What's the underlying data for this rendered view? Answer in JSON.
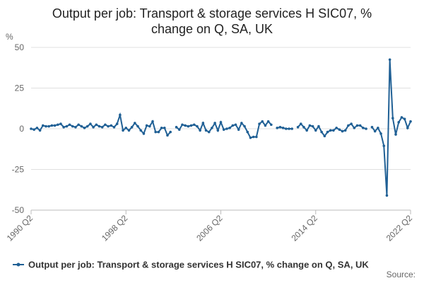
{
  "chart_data": {
    "type": "line",
    "title": "Output per job: Transport & storage services H SIC07, % change on Q, SA, UK",
    "y_label": "%",
    "source": "Source:",
    "categories": [
      "1990 Q2",
      null,
      null,
      null,
      null,
      null,
      null,
      null,
      null,
      null,
      null,
      null,
      null,
      null,
      null,
      null,
      null,
      null,
      null,
      null,
      null,
      null,
      null,
      null,
      null,
      null,
      null,
      null,
      null,
      null,
      null,
      null,
      "1998 Q2",
      null,
      null,
      null,
      null,
      null,
      null,
      null,
      null,
      null,
      null,
      null,
      null,
      null,
      null,
      null,
      null,
      null,
      null,
      null,
      null,
      null,
      null,
      null,
      null,
      null,
      null,
      null,
      null,
      null,
      null,
      null,
      "2006 Q2",
      null,
      null,
      null,
      null,
      null,
      null,
      null,
      null,
      null,
      null,
      null,
      null,
      null,
      null,
      null,
      null,
      null,
      null,
      null,
      null,
      null,
      null,
      null,
      null,
      null,
      null,
      null,
      null,
      null,
      null,
      null,
      "2014 Q2",
      null,
      null,
      null,
      null,
      null,
      null,
      null,
      null,
      null,
      null,
      null,
      null,
      null,
      null,
      null,
      null,
      null,
      null,
      null,
      null,
      null,
      null,
      null,
      null,
      null,
      null,
      null,
      null,
      null,
      null,
      null,
      "2022 Q2"
    ],
    "series": [
      {
        "name": "Output per job: Transport & storage services H SIC07, % change on Q, SA, UK",
        "color": "#206095",
        "values": [
          0,
          -0.5,
          0.5,
          -1,
          2,
          1.5,
          1.5,
          2,
          2,
          2.5,
          3,
          1,
          1.5,
          2.5,
          1.5,
          1,
          2.5,
          1.5,
          0.5,
          1.5,
          3,
          1,
          2.5,
          1.5,
          1,
          2.5,
          1.5,
          2,
          1,
          3,
          8.5,
          -1,
          0.5,
          -1,
          1,
          3.5,
          1.5,
          -1,
          -3,
          2,
          1.5,
          4.5,
          -2,
          -2,
          0.5,
          0.5,
          -4,
          -2,
          null,
          1,
          -0.5,
          2.5,
          2,
          1.5,
          2,
          2.5,
          1.5,
          -1,
          3.5,
          -1,
          -2,
          0.5,
          3.5,
          -1,
          4,
          -0.5,
          0,
          0.5,
          2,
          2.5,
          -0.5,
          3.5,
          1.5,
          -2,
          -5.5,
          -5,
          -5,
          3,
          4.5,
          2,
          4.5,
          2.5,
          null,
          0.5,
          1,
          0.5,
          0,
          0,
          0,
          null,
          1,
          3,
          1,
          -1,
          2,
          1.5,
          -1,
          1.5,
          -2,
          -4.5,
          -2,
          -1,
          -1,
          0.5,
          -0.5,
          -1.5,
          -1,
          2,
          3,
          0.5,
          2,
          2,
          0.5,
          0,
          null,
          1,
          -1.5,
          0.5,
          -3,
          -10.5,
          -41,
          42.5,
          6.5,
          -3.5,
          4,
          7,
          6,
          0.5,
          4.5
        ]
      }
    ],
    "ylim": [
      -50,
      50
    ],
    "yticks": [
      -50,
      -25,
      0,
      25,
      50
    ],
    "grid": true
  }
}
